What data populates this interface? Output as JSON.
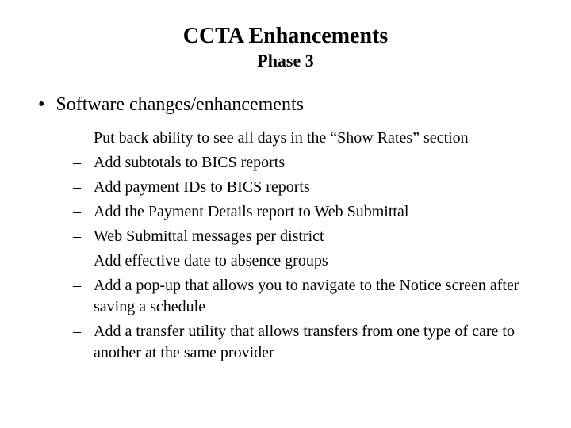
{
  "title": "CCTA Enhancements",
  "subtitle": "Phase 3",
  "main_bullet": "Software changes/enhancements",
  "sub_items": [
    "Put back ability to see all days in the “Show Rates” section",
    "Add subtotals to BICS reports",
    "Add payment IDs to BICS reports",
    "Add the Payment Details report to Web Submittal",
    "Web Submittal messages per district",
    "Add effective date to absence groups",
    "Add a pop-up that allows you to navigate to the Notice screen after saving a schedule",
    "Add a transfer utility that allows transfers from one type of care to another at the same provider"
  ],
  "colors": {
    "background": "#ffffff",
    "text": "#000000"
  },
  "typography": {
    "title_fontsize": 28,
    "subtitle_fontsize": 22,
    "level1_fontsize": 24,
    "level2_fontsize": 20,
    "font_family": "Times New Roman"
  }
}
